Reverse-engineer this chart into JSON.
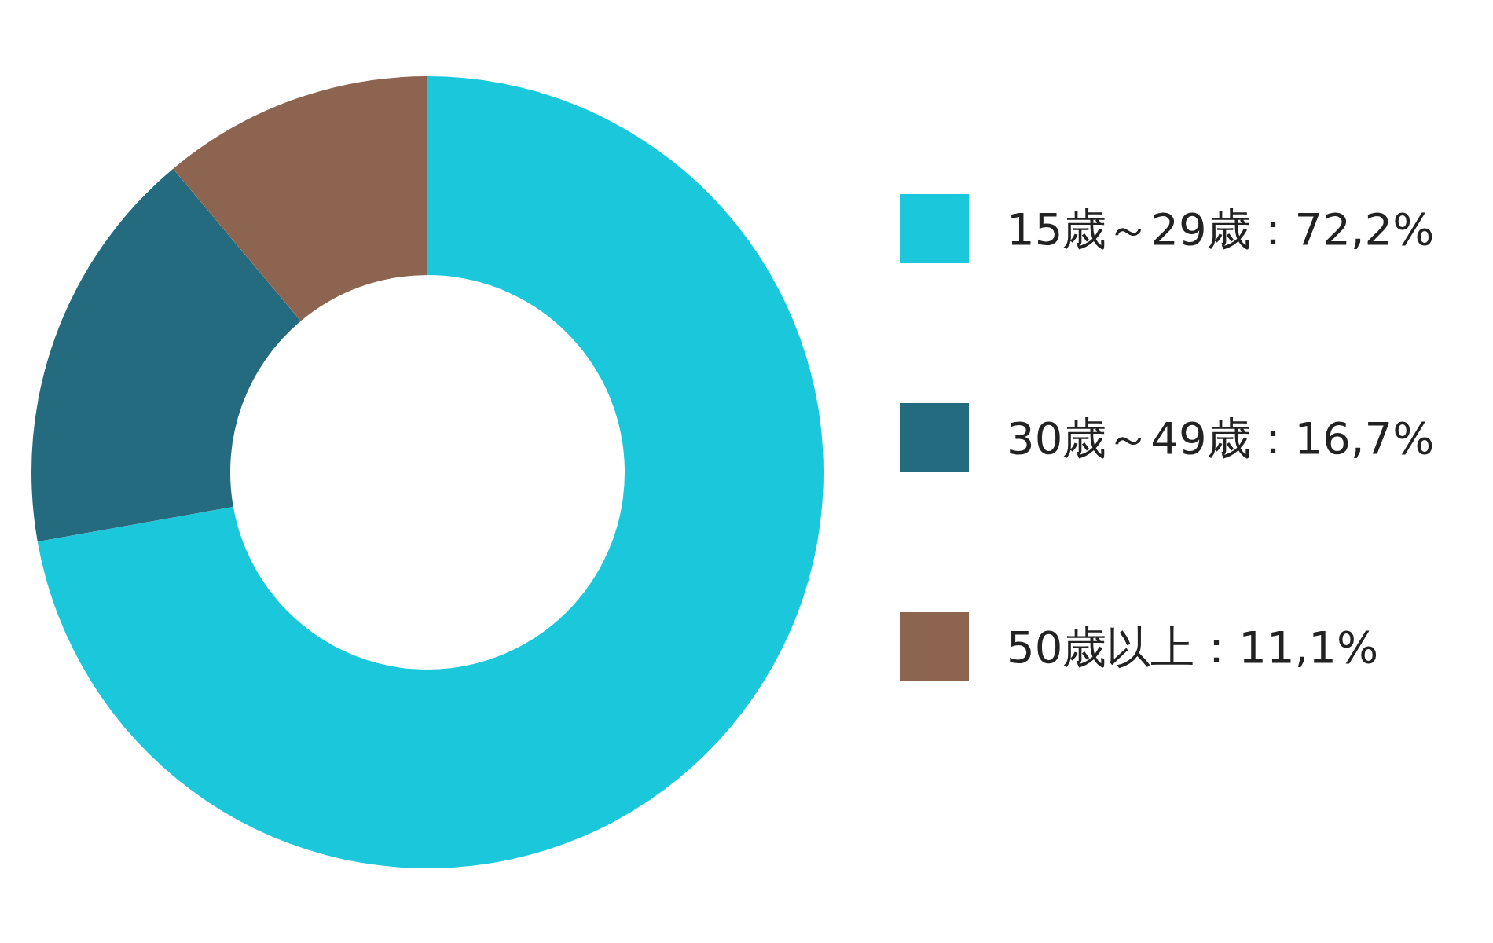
{
  "chart_data": {
    "type": "donut",
    "categories": [
      "15歳～29歳：72,2%",
      "30歳～49歳：16,7%",
      "50歳以上：11,1%"
    ],
    "values": [
      72.2,
      16.7,
      11.1
    ],
    "colors": [
      "#1bc8db",
      "#256b80",
      "#8c6450"
    ],
    "legend": "right"
  }
}
